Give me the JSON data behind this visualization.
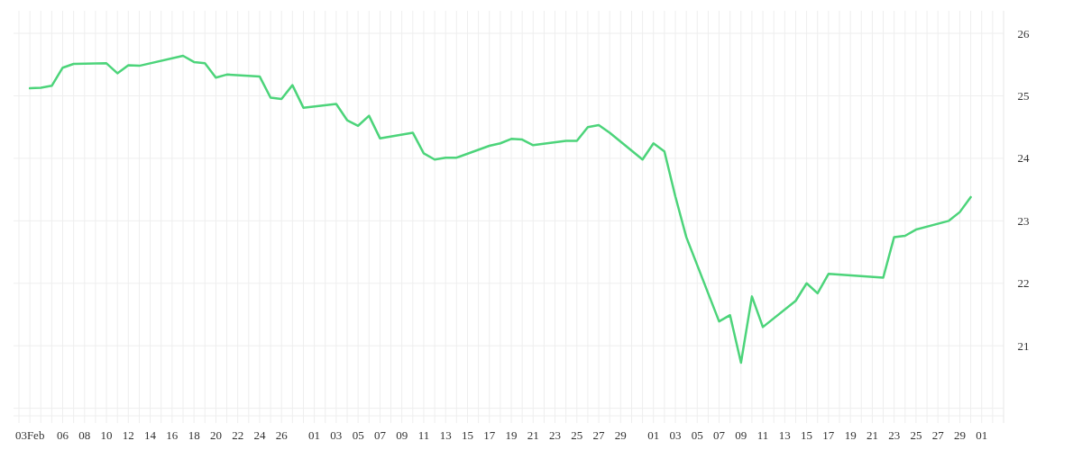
{
  "chart_data": {
    "type": "line",
    "x": [
      "--02-03",
      "--02-04",
      "--02-05",
      "--02-06",
      "--02-07",
      "--02-10",
      "--02-11",
      "--02-12",
      "--02-13",
      "--02-17",
      "--02-18",
      "--02-19",
      "--02-20",
      "--02-21",
      "--02-24",
      "--02-25",
      "--02-26",
      "--02-27",
      "--02-28",
      "--03-03",
      "--03-04",
      "--03-05",
      "--03-06",
      "--03-07",
      "--03-10",
      "--03-11",
      "--03-12",
      "--03-13",
      "--03-14",
      "--03-17",
      "--03-18",
      "--03-19",
      "--03-20",
      "--03-21",
      "--03-24",
      "--03-25",
      "--03-26",
      "--03-27",
      "--03-28",
      "--03-31",
      "--04-01",
      "--04-02",
      "--04-03",
      "--04-04",
      "--04-07",
      "--04-08",
      "--04-09",
      "--04-10",
      "--04-11",
      "--04-14",
      "--04-15",
      "--04-16",
      "--04-17",
      "--04-22",
      "--04-23",
      "--04-24",
      "--04-25",
      "--04-28",
      "--04-29",
      "--04-30"
    ],
    "series": [
      {
        "color": "#4cd47a",
        "values": [
          25.12,
          25.13,
          25.16,
          25.45,
          25.51,
          25.52,
          25.36,
          25.49,
          25.48,
          25.64,
          25.54,
          25.52,
          25.29,
          25.34,
          25.31,
          24.97,
          24.95,
          25.17,
          24.81,
          24.87,
          24.61,
          24.52,
          24.68,
          24.32,
          24.41,
          24.08,
          23.98,
          24.01,
          24.01,
          24.2,
          24.24,
          24.31,
          24.3,
          24.21,
          24.28,
          24.28,
          24.5,
          24.53,
          24.41,
          23.98,
          24.24,
          24.11,
          23.39,
          22.74,
          21.39,
          21.49,
          20.73,
          21.79,
          21.3,
          21.72,
          22.0,
          21.84,
          22.15,
          22.09,
          22.74,
          22.76,
          22.86,
          23.0,
          23.14,
          23.38
        ]
      }
    ],
    "xlim": [
      "--02-02",
      "--05-03"
    ],
    "xticks": [
      {
        "value": "--02-02",
        "label": null
      },
      {
        "value": "--02-03",
        "label": "03Feb"
      },
      {
        "value": "--02-04",
        "label": null
      },
      {
        "value": "--02-05",
        "label": null
      },
      {
        "value": "--02-06",
        "label": "06"
      },
      {
        "value": "--02-07",
        "label": null
      },
      {
        "value": "--02-08",
        "label": "08"
      },
      {
        "value": "--02-09",
        "label": null
      },
      {
        "value": "--02-10",
        "label": "10"
      },
      {
        "value": "--02-11",
        "label": null
      },
      {
        "value": "--02-12",
        "label": "12"
      },
      {
        "value": "--02-13",
        "label": null
      },
      {
        "value": "--02-14",
        "label": "14"
      },
      {
        "value": "--02-15",
        "label": null
      },
      {
        "value": "--02-16",
        "label": "16"
      },
      {
        "value": "--02-17",
        "label": null
      },
      {
        "value": "--02-18",
        "label": "18"
      },
      {
        "value": "--02-19",
        "label": null
      },
      {
        "value": "--02-20",
        "label": "20"
      },
      {
        "value": "--02-21",
        "label": null
      },
      {
        "value": "--02-22",
        "label": "22"
      },
      {
        "value": "--02-23",
        "label": null
      },
      {
        "value": "--02-24",
        "label": "24"
      },
      {
        "value": "--02-25",
        "label": null
      },
      {
        "value": "--02-26",
        "label": "26"
      },
      {
        "value": "--02-27",
        "label": null
      },
      {
        "value": "--02-28",
        "label": null
      },
      {
        "value": "--03-01",
        "label": "01"
      },
      {
        "value": "--03-02",
        "label": null
      },
      {
        "value": "--03-03",
        "label": "03"
      },
      {
        "value": "--03-04",
        "label": null
      },
      {
        "value": "--03-05",
        "label": "05"
      },
      {
        "value": "--03-06",
        "label": null
      },
      {
        "value": "--03-07",
        "label": "07"
      },
      {
        "value": "--03-08",
        "label": null
      },
      {
        "value": "--03-09",
        "label": "09"
      },
      {
        "value": "--03-10",
        "label": null
      },
      {
        "value": "--03-11",
        "label": "11"
      },
      {
        "value": "--03-12",
        "label": null
      },
      {
        "value": "--03-13",
        "label": "13"
      },
      {
        "value": "--03-14",
        "label": null
      },
      {
        "value": "--03-15",
        "label": "15"
      },
      {
        "value": "--03-16",
        "label": null
      },
      {
        "value": "--03-17",
        "label": "17"
      },
      {
        "value": "--03-18",
        "label": null
      },
      {
        "value": "--03-19",
        "label": "19"
      },
      {
        "value": "--03-20",
        "label": null
      },
      {
        "value": "--03-21",
        "label": "21"
      },
      {
        "value": "--03-22",
        "label": null
      },
      {
        "value": "--03-23",
        "label": "23"
      },
      {
        "value": "--03-24",
        "label": null
      },
      {
        "value": "--03-25",
        "label": "25"
      },
      {
        "value": "--03-26",
        "label": null
      },
      {
        "value": "--03-27",
        "label": "27"
      },
      {
        "value": "--03-28",
        "label": null
      },
      {
        "value": "--03-29",
        "label": "29"
      },
      {
        "value": "--03-30",
        "label": null
      },
      {
        "value": "--03-31",
        "label": null
      },
      {
        "value": "--04-01",
        "label": "01"
      },
      {
        "value": "--04-02",
        "label": null
      },
      {
        "value": "--04-03",
        "label": "03"
      },
      {
        "value": "--04-04",
        "label": null
      },
      {
        "value": "--04-05",
        "label": "05"
      },
      {
        "value": "--04-06",
        "label": null
      },
      {
        "value": "--04-07",
        "label": "07"
      },
      {
        "value": "--04-08",
        "label": null
      },
      {
        "value": "--04-09",
        "label": "09"
      },
      {
        "value": "--04-10",
        "label": null
      },
      {
        "value": "--04-11",
        "label": "11"
      },
      {
        "value": "--04-12",
        "label": null
      },
      {
        "value": "--04-13",
        "label": "13"
      },
      {
        "value": "--04-14",
        "label": null
      },
      {
        "value": "--04-15",
        "label": "15"
      },
      {
        "value": "--04-16",
        "label": null
      },
      {
        "value": "--04-17",
        "label": "17"
      },
      {
        "value": "--04-18",
        "label": null
      },
      {
        "value": "--04-19",
        "label": "19"
      },
      {
        "value": "--04-20",
        "label": null
      },
      {
        "value": "--04-21",
        "label": "21"
      },
      {
        "value": "--04-22",
        "label": null
      },
      {
        "value": "--04-23",
        "label": "23"
      },
      {
        "value": "--04-24",
        "label": null
      },
      {
        "value": "--04-25",
        "label": "25"
      },
      {
        "value": "--04-26",
        "label": null
      },
      {
        "value": "--04-27",
        "label": "27"
      },
      {
        "value": "--04-28",
        "label": null
      },
      {
        "value": "--04-29",
        "label": "29"
      },
      {
        "value": "--04-30",
        "label": null
      },
      {
        "value": "--05-01",
        "label": "01"
      },
      {
        "value": "--05-02",
        "label": null
      },
      {
        "value": "--05-03",
        "label": null
      }
    ],
    "ylim": [
      19.88,
      26.36
    ],
    "yticks": [
      {
        "value": 20,
        "label": null
      },
      21,
      22,
      23,
      24,
      25,
      26
    ],
    "grid": true,
    "marker": "none",
    "line_style": "solid"
  }
}
